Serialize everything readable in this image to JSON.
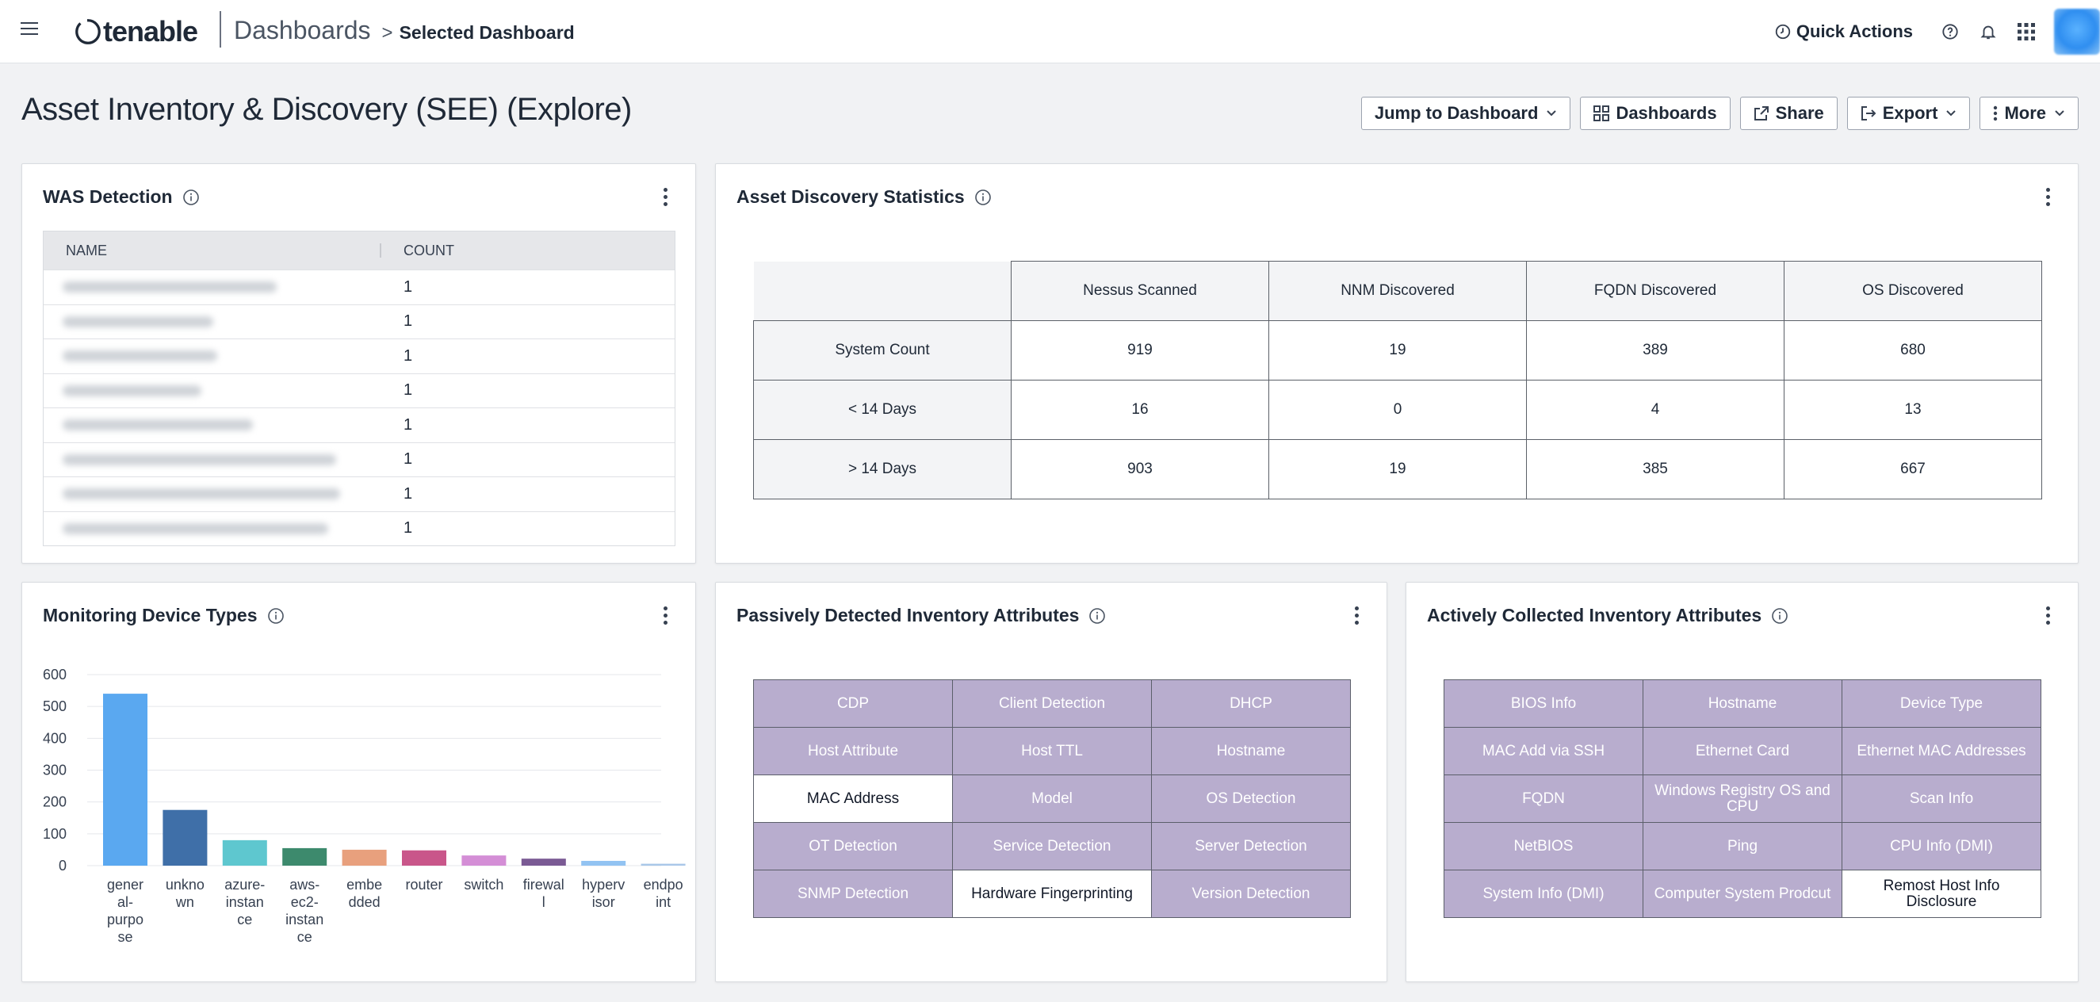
{
  "topbar": {
    "logo_text": "tenable",
    "breadcrumb_main": "Dashboards",
    "breadcrumb_sub": "Selected Dashboard",
    "quick_actions": "Quick Actions"
  },
  "page": {
    "title": "Asset Inventory & Discovery (SEE) (Explore)",
    "actions": {
      "jump": "Jump to Dashboard",
      "dashboards": "Dashboards",
      "share": "Share",
      "export": "Export",
      "more": "More"
    }
  },
  "was": {
    "title": "WAS Detection",
    "col_name": "NAME",
    "col_count": "COUNT",
    "rows": [
      {
        "count": "1"
      },
      {
        "count": "1"
      },
      {
        "count": "1"
      },
      {
        "count": "1"
      },
      {
        "count": "1"
      },
      {
        "count": "1"
      },
      {
        "count": "1"
      },
      {
        "count": "1"
      }
    ]
  },
  "stats": {
    "title": "Asset Discovery Statistics",
    "columns": [
      "Nessus Scanned",
      "NNM Discovered",
      "FQDN Discovered",
      "OS Discovered"
    ],
    "rows": [
      {
        "label": "System Count",
        "values": [
          "919",
          "19",
          "389",
          "680"
        ]
      },
      {
        "label": "< 14 Days",
        "values": [
          "16",
          "0",
          "4",
          "13"
        ]
      },
      {
        "label": "> 14 Days",
        "values": [
          "903",
          "19",
          "385",
          "667"
        ]
      }
    ]
  },
  "monitoring": {
    "title": "Monitoring Device Types"
  },
  "chart_data": {
    "type": "bar",
    "title": "Monitoring Device Types",
    "categories": [
      "general-purpose",
      "unknown",
      "azure-instance",
      "aws-ec2-instance",
      "embedded",
      "router",
      "switch",
      "firewall",
      "hypervisor",
      "endpoint"
    ],
    "category_labels": [
      [
        "gener",
        "al-",
        "purpo",
        "se"
      ],
      [
        "unkno",
        "wn"
      ],
      [
        "azure-",
        "instan",
        "ce"
      ],
      [
        "aws-",
        "ec2-",
        "instan",
        "ce"
      ],
      [
        "embe",
        "dded"
      ],
      [
        "router"
      ],
      [
        "switch"
      ],
      [
        "firewal",
        "l"
      ],
      [
        "hyperv",
        "isor"
      ],
      [
        "endpo",
        "int"
      ]
    ],
    "values": [
      540,
      175,
      80,
      55,
      50,
      48,
      32,
      22,
      15,
      6
    ],
    "colors": [
      "#5aa8f0",
      "#3f6fa8",
      "#5ec7cf",
      "#3d8a6d",
      "#e8a07d",
      "#c9568a",
      "#d48ed6",
      "#7a5a94",
      "#92c3f2",
      "#a9c7e8"
    ],
    "yticks": [
      "600",
      "500",
      "400",
      "300",
      "200",
      "100",
      "0"
    ],
    "ylim": [
      0,
      600
    ]
  },
  "passive": {
    "title": "Passively Detected Inventory Attributes",
    "cells": [
      [
        "CDP",
        "Client Detection",
        "DHCP"
      ],
      [
        "Host Attribute",
        "Host TTL",
        "Hostname"
      ],
      [
        "MAC Address",
        "Model",
        "OS Detection"
      ],
      [
        "OT Detection",
        "Service Detection",
        "Server Detection"
      ],
      [
        "SNMP Detection",
        "Hardware Fingerprinting",
        "Version Detection"
      ]
    ]
  },
  "active": {
    "title": "Actively Collected Inventory Attributes",
    "cells": [
      [
        "BIOS Info",
        "Hostname",
        "Device Type"
      ],
      [
        "MAC Add via SSH",
        "Ethernet Card",
        "Ethernet MAC Addresses"
      ],
      [
        "FQDN",
        "Windows Registry OS and CPU",
        "Scan Info"
      ],
      [
        "NetBIOS",
        "Ping",
        "CPU Info (DMI)"
      ],
      [
        "System Info (DMI)",
        "Computer System Prodcut",
        "Remost Host Info Disclosure"
      ]
    ]
  },
  "colors": {
    "attr_fill": "#b8adce",
    "brand_text": "#1f2937"
  }
}
